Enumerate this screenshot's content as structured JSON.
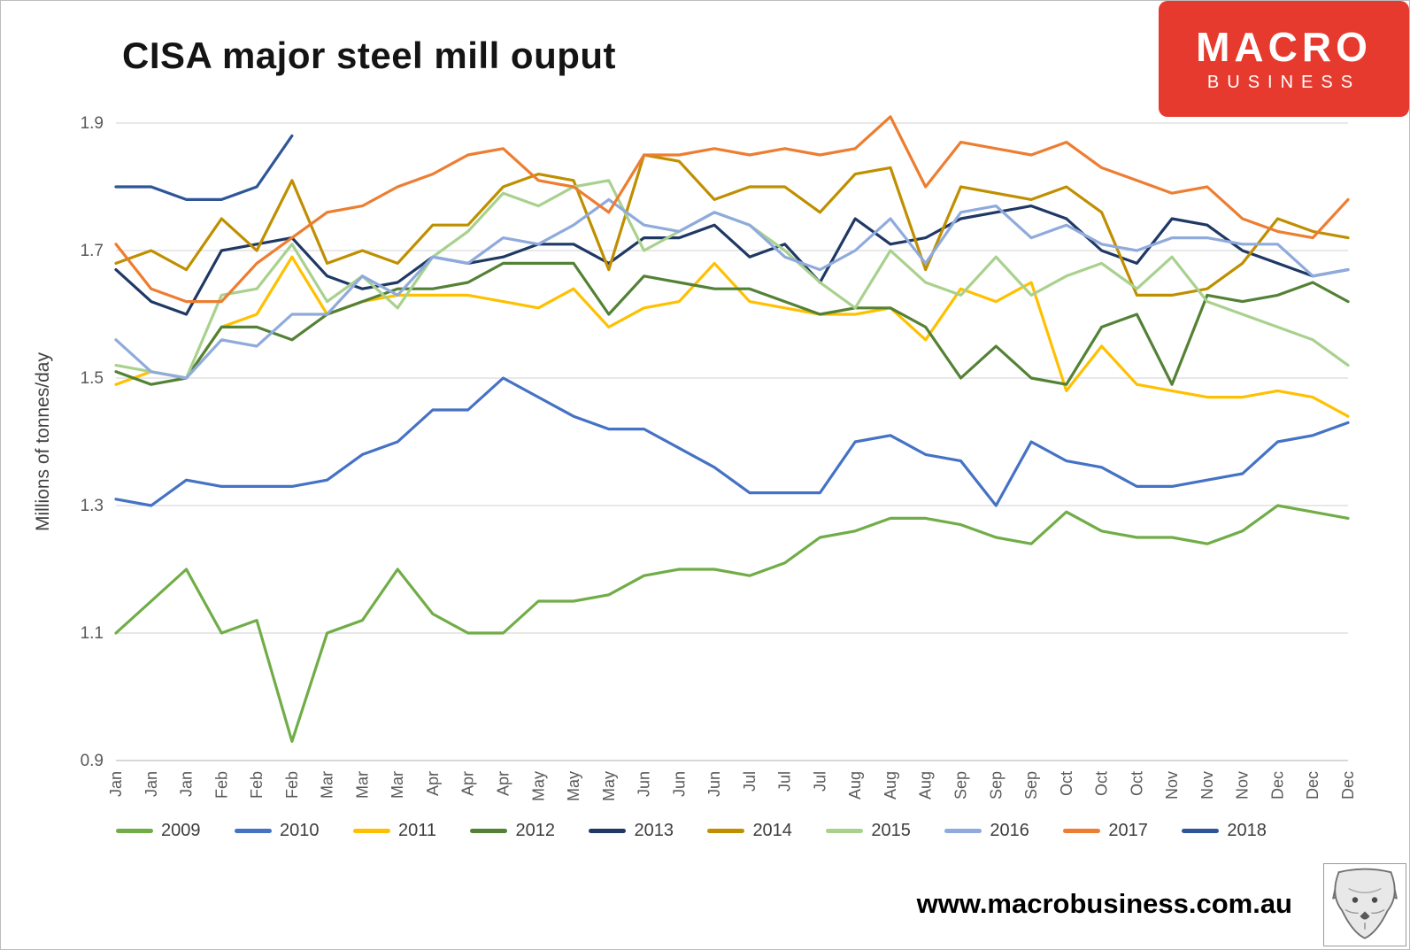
{
  "header": {
    "title": "CISA major steel mill ouput"
  },
  "logo": {
    "line1": "MACRO",
    "line2": "BUSINESS",
    "background": "#e63a2e",
    "text_color": "#ffffff"
  },
  "footer": {
    "url": "www.macrobusiness.com.au"
  },
  "chart_data": {
    "type": "line",
    "title": "CISA major steel mill ouput",
    "ylabel": "Millions of tonnes/day",
    "xlabel": "",
    "ylim": [
      0.9,
      1.9
    ],
    "yticks": [
      0.9,
      1.1,
      1.3,
      1.5,
      1.7,
      1.9
    ],
    "grid": true,
    "legend_position": "bottom",
    "axis_text_color": "#595959",
    "gridline_color": "#d9d9d9",
    "x": [
      "Jan",
      "Jan",
      "Jan",
      "Feb",
      "Feb",
      "Feb",
      "Mar",
      "Mar",
      "Mar",
      "Apr",
      "Apr",
      "Apr",
      "May",
      "May",
      "May",
      "Jun",
      "Jun",
      "Jun",
      "Jul",
      "Jul",
      "Jul",
      "Aug",
      "Aug",
      "Aug",
      "Sep",
      "Sep",
      "Sep",
      "Oct",
      "Oct",
      "Oct",
      "Nov",
      "Nov",
      "Nov",
      "Dec",
      "Dec",
      "Dec"
    ],
    "series": [
      {
        "name": "2009",
        "color": "#70ad47",
        "values": [
          1.1,
          1.15,
          1.2,
          1.1,
          1.12,
          0.93,
          1.1,
          1.12,
          1.2,
          1.13,
          1.1,
          1.1,
          1.15,
          1.15,
          1.16,
          1.19,
          1.2,
          1.2,
          1.19,
          1.21,
          1.25,
          1.26,
          1.28,
          1.28,
          1.27,
          1.25,
          1.24,
          1.29,
          1.26,
          1.25,
          1.25,
          1.24,
          1.26,
          1.3,
          1.29,
          1.28
        ]
      },
      {
        "name": "2010",
        "color": "#4472c4",
        "values": [
          1.31,
          1.3,
          1.34,
          1.33,
          1.33,
          1.33,
          1.34,
          1.38,
          1.4,
          1.45,
          1.45,
          1.5,
          1.47,
          1.44,
          1.42,
          1.42,
          1.39,
          1.36,
          1.32,
          1.32,
          1.32,
          1.4,
          1.41,
          1.38,
          1.37,
          1.3,
          1.4,
          1.37,
          1.36,
          1.33,
          1.33,
          1.34,
          1.35,
          1.4,
          1.41,
          1.43
        ]
      },
      {
        "name": "2011",
        "color": "#ffc000",
        "values": [
          1.49,
          1.51,
          1.5,
          1.58,
          1.6,
          1.69,
          1.6,
          1.62,
          1.63,
          1.63,
          1.63,
          1.62,
          1.61,
          1.64,
          1.58,
          1.61,
          1.62,
          1.68,
          1.62,
          1.61,
          1.6,
          1.6,
          1.61,
          1.56,
          1.64,
          1.62,
          1.65,
          1.48,
          1.55,
          1.49,
          1.48,
          1.47,
          1.47,
          1.48,
          1.47,
          1.44
        ]
      },
      {
        "name": "2012",
        "color": "#538135",
        "values": [
          1.51,
          1.49,
          1.5,
          1.58,
          1.58,
          1.56,
          1.6,
          1.62,
          1.64,
          1.64,
          1.65,
          1.68,
          1.68,
          1.68,
          1.6,
          1.66,
          1.65,
          1.64,
          1.64,
          1.62,
          1.6,
          1.61,
          1.61,
          1.58,
          1.5,
          1.55,
          1.5,
          1.49,
          1.58,
          1.6,
          1.49,
          1.63,
          1.62,
          1.63,
          1.65,
          1.62
        ]
      },
      {
        "name": "2013",
        "color": "#1f3864",
        "values": [
          1.67,
          1.62,
          1.6,
          1.7,
          1.71,
          1.72,
          1.66,
          1.64,
          1.65,
          1.69,
          1.68,
          1.69,
          1.71,
          1.71,
          1.68,
          1.72,
          1.72,
          1.74,
          1.69,
          1.71,
          1.65,
          1.75,
          1.71,
          1.72,
          1.75,
          1.76,
          1.77,
          1.75,
          1.7,
          1.68,
          1.75,
          1.74,
          1.7,
          1.68,
          1.66,
          1.67
        ]
      },
      {
        "name": "2014",
        "color": "#bf8f00",
        "values": [
          1.68,
          1.7,
          1.67,
          1.75,
          1.7,
          1.81,
          1.68,
          1.7,
          1.68,
          1.74,
          1.74,
          1.8,
          1.82,
          1.81,
          1.67,
          1.85,
          1.84,
          1.78,
          1.8,
          1.8,
          1.76,
          1.82,
          1.83,
          1.67,
          1.8,
          1.79,
          1.78,
          1.8,
          1.76,
          1.63,
          1.63,
          1.64,
          1.68,
          1.75,
          1.73,
          1.72
        ]
      },
      {
        "name": "2015",
        "color": "#a9d18e",
        "values": [
          1.52,
          1.51,
          1.5,
          1.63,
          1.64,
          1.71,
          1.62,
          1.66,
          1.61,
          1.69,
          1.73,
          1.79,
          1.77,
          1.8,
          1.81,
          1.7,
          1.73,
          1.76,
          1.74,
          1.7,
          1.65,
          1.61,
          1.7,
          1.65,
          1.63,
          1.69,
          1.63,
          1.66,
          1.68,
          1.64,
          1.69,
          1.62,
          1.6,
          1.58,
          1.56,
          1.52
        ]
      },
      {
        "name": "2016",
        "color": "#8faadc",
        "values": [
          1.56,
          1.51,
          1.5,
          1.56,
          1.55,
          1.6,
          1.6,
          1.66,
          1.63,
          1.69,
          1.68,
          1.72,
          1.71,
          1.74,
          1.78,
          1.74,
          1.73,
          1.76,
          1.74,
          1.69,
          1.67,
          1.7,
          1.75,
          1.68,
          1.76,
          1.77,
          1.72,
          1.74,
          1.71,
          1.7,
          1.72,
          1.72,
          1.71,
          1.71,
          1.66,
          1.67
        ]
      },
      {
        "name": "2017",
        "color": "#ed7d31",
        "values": [
          1.71,
          1.64,
          1.62,
          1.62,
          1.68,
          1.72,
          1.76,
          1.77,
          1.8,
          1.82,
          1.85,
          1.86,
          1.81,
          1.8,
          1.76,
          1.85,
          1.85,
          1.86,
          1.85,
          1.86,
          1.85,
          1.86,
          1.91,
          1.8,
          1.87,
          1.86,
          1.85,
          1.87,
          1.83,
          1.81,
          1.79,
          1.8,
          1.75,
          1.73,
          1.72,
          1.78
        ]
      },
      {
        "name": "2018",
        "color": "#2e5597",
        "values": [
          1.8,
          1.8,
          1.78,
          1.78,
          1.8,
          1.88,
          null,
          null,
          null,
          null,
          null,
          null,
          null,
          null,
          null,
          null,
          null,
          null,
          null,
          null,
          null,
          null,
          null,
          null,
          null,
          null,
          null,
          null,
          null,
          null,
          null,
          null,
          null,
          null,
          null,
          null
        ]
      }
    ]
  }
}
